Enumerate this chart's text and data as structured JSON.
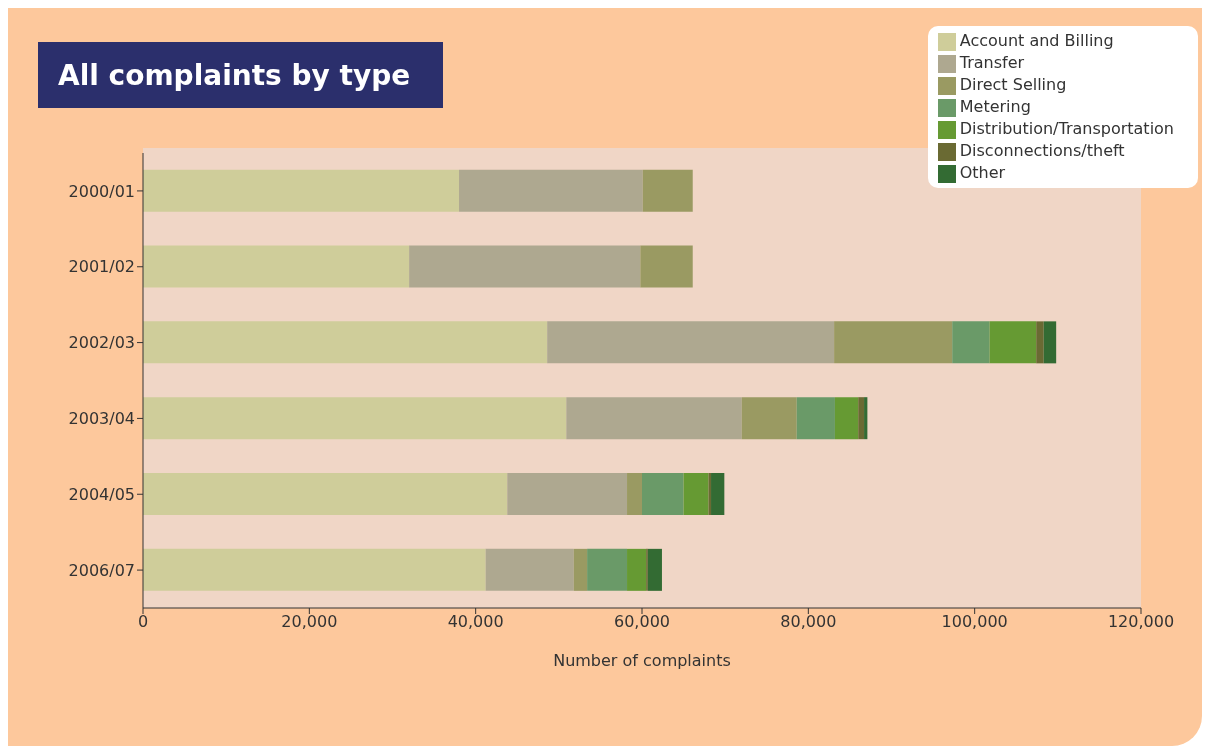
{
  "chart_data": {
    "type": "bar",
    "orientation": "horizontal",
    "stacked": true,
    "title": "All complaints by type",
    "xlabel": "Number of complaints",
    "categories": [
      "2000/01",
      "2001/02",
      "2002/03",
      "2003/04",
      "2004/05",
      "2006/07"
    ],
    "series": [
      {
        "name": "Account and Billing",
        "color": "#cfcd9a",
        "values": [
          38000,
          32000,
          48600,
          50900,
          43800,
          41200
        ]
      },
      {
        "name": "Transfer",
        "color": "#aea890",
        "values": [
          22100,
          27800,
          34500,
          21100,
          14400,
          10600
        ]
      },
      {
        "name": "Direct Selling",
        "color": "#9a9a62",
        "values": [
          6000,
          6300,
          14200,
          6600,
          1800,
          1600
        ]
      },
      {
        "name": "Metering",
        "color": "#6a9a68",
        "values": [
          0,
          0,
          4500,
          4600,
          5000,
          4800
        ]
      },
      {
        "name": "Distribution/Transportation",
        "color": "#669a33",
        "values": [
          0,
          0,
          5600,
          2800,
          3000,
          2300
        ]
      },
      {
        "name": "Disconnections/theft",
        "color": "#6a6a33",
        "values": [
          0,
          0,
          900,
          700,
          300,
          200
        ]
      },
      {
        "name": "Other",
        "color": "#336b33",
        "values": [
          0,
          0,
          1500,
          400,
          1600,
          1700
        ]
      }
    ],
    "xlim": [
      0,
      120000
    ],
    "xticks": [
      {
        "value": 0,
        "label": "0"
      },
      {
        "value": 20000,
        "label": "20,000"
      },
      {
        "value": 40000,
        "label": "40,000"
      },
      {
        "value": 60000,
        "label": "60,000"
      },
      {
        "value": 80000,
        "label": "80,000"
      },
      {
        "value": 100000,
        "label": "100,000"
      },
      {
        "value": 120000,
        "label": "120,000"
      }
    ],
    "grid": false,
    "legend": "top right"
  }
}
